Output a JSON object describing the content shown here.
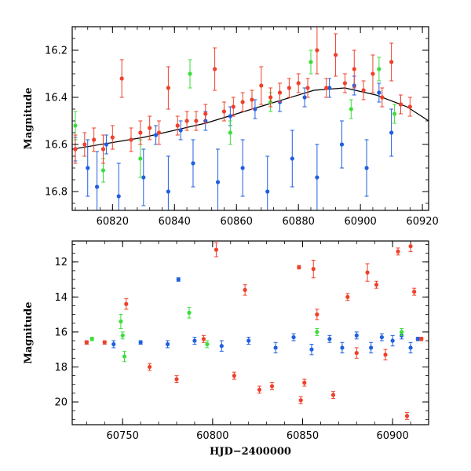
{
  "chart_data": [
    {
      "type": "scatter",
      "title": "",
      "xlabel": "",
      "ylabel": "Magnitude",
      "xlim": [
        60807,
        60922
      ],
      "ylim": [
        16.1,
        16.88
      ],
      "y_inverted": true,
      "xticks": [
        60820,
        60840,
        60860,
        60880,
        60900,
        60920
      ],
      "xtick_labels": [
        "60820",
        "60840",
        "60860",
        "60880",
        "60900",
        "60920"
      ],
      "yticks": [
        16.2,
        16.4,
        16.6,
        16.8
      ],
      "ytick_labels": [
        "16.2",
        "16.4",
        "16.6",
        "16.8"
      ],
      "grid": false,
      "error_bars": true,
      "model_curve": {
        "color": "#000000",
        "x": [
          60807,
          60830,
          60850,
          60870,
          60885,
          60895,
          60905,
          60915,
          60922
        ],
        "y": [
          16.62,
          16.57,
          16.51,
          16.43,
          16.37,
          16.36,
          16.39,
          16.44,
          16.5
        ]
      },
      "series": [
        {
          "color": "#1f5fe0",
          "x": [
            60808,
            60812,
            60815,
            60818,
            60822,
            60826,
            60830,
            60834,
            60838,
            60842,
            60846,
            60850,
            60854,
            60858,
            60862,
            60866,
            60870,
            60874,
            60878,
            60882,
            60886,
            60890,
            60894,
            60898,
            60902,
            60906,
            60910,
            60913
          ],
          "y": [
            16.62,
            16.7,
            16.78,
            16.6,
            16.82,
            16.58,
            16.74,
            16.56,
            16.8,
            16.54,
            16.68,
            16.5,
            16.76,
            16.48,
            16.7,
            16.45,
            16.8,
            16.42,
            16.66,
            16.4,
            16.74,
            16.36,
            16.6,
            16.35,
            16.7,
            16.38,
            16.55,
            16.43
          ],
          "yerr": [
            0.05,
            0.12,
            0.15,
            0.04,
            0.14,
            0.05,
            0.12,
            0.04,
            0.15,
            0.04,
            0.1,
            0.04,
            0.14,
            0.04,
            0.12,
            0.04,
            0.15,
            0.04,
            0.12,
            0.04,
            0.14,
            0.04,
            0.1,
            0.04,
            0.12,
            0.04,
            0.1,
            0.04
          ]
        },
        {
          "color": "#3ddc3d",
          "x": [
            60808,
            60817,
            60829,
            60845,
            60858,
            60871,
            60884,
            60897,
            60906,
            60911
          ],
          "y": [
            16.52,
            16.71,
            16.66,
            16.3,
            16.55,
            16.42,
            16.25,
            16.45,
            16.28,
            16.47
          ],
          "yerr": [
            0.06,
            0.05,
            0.08,
            0.06,
            0.05,
            0.04,
            0.05,
            0.04,
            0.05,
            0.04
          ]
        },
        {
          "color": "#f0402a",
          "x": [
            60808,
            60811,
            60814,
            60817,
            60820,
            60823,
            60826,
            60829,
            60832,
            60835,
            60838,
            60841,
            60844,
            60847,
            60850,
            60853,
            60856,
            60859,
            60862,
            60865,
            60868,
            60871,
            60874,
            60877,
            60880,
            60883,
            60886,
            60889,
            60892,
            60895,
            60898,
            60901,
            60904,
            60907,
            60910,
            60913,
            60916
          ],
          "y": [
            16.62,
            16.6,
            16.58,
            16.62,
            16.57,
            16.32,
            16.58,
            16.55,
            16.53,
            16.55,
            16.36,
            16.52,
            16.5,
            16.5,
            16.47,
            16.28,
            16.46,
            16.44,
            16.42,
            16.41,
            16.35,
            16.4,
            16.38,
            16.36,
            16.34,
            16.36,
            16.2,
            16.36,
            16.22,
            16.34,
            16.28,
            16.37,
            16.3,
            16.4,
            16.25,
            16.43,
            16.44
          ],
          "yerr": [
            0.06,
            0.05,
            0.05,
            0.06,
            0.05,
            0.08,
            0.05,
            0.05,
            0.05,
            0.05,
            0.09,
            0.04,
            0.04,
            0.04,
            0.04,
            0.09,
            0.04,
            0.04,
            0.04,
            0.04,
            0.08,
            0.04,
            0.04,
            0.04,
            0.04,
            0.04,
            0.1,
            0.04,
            0.09,
            0.04,
            0.08,
            0.04,
            0.08,
            0.04,
            0.08,
            0.04,
            0.04
          ]
        }
      ]
    },
    {
      "type": "scatter",
      "title": "",
      "xlabel": "HJD−2400000",
      "ylabel": "Magnitude",
      "xlim": [
        60722,
        60920
      ],
      "ylim": [
        10.8,
        21.3
      ],
      "y_inverted": true,
      "xticks": [
        60750,
        60800,
        60850,
        60900
      ],
      "xtick_labels": [
        "60750",
        "60800",
        "60850",
        "60900"
      ],
      "yticks": [
        12,
        14,
        16,
        18,
        20
      ],
      "ytick_labels": [
        "12",
        "14",
        "16",
        "18",
        "20"
      ],
      "grid": false,
      "error_bars": true,
      "series": [
        {
          "color": "#1f5fe0",
          "x": [
            60730,
            60745,
            60760,
            60775,
            60781,
            60790,
            60805,
            60820,
            60835,
            60845,
            60855,
            60865,
            60872,
            60880,
            60888,
            60894,
            60900,
            60905,
            60910,
            60914
          ],
          "y": [
            16.6,
            16.7,
            16.6,
            16.7,
            13.0,
            16.5,
            16.8,
            16.5,
            16.9,
            16.3,
            17.0,
            16.4,
            16.9,
            16.2,
            16.9,
            16.3,
            16.5,
            16.2,
            16.9,
            16.4
          ],
          "yerr": [
            0.1,
            0.2,
            0.1,
            0.2,
            0.1,
            0.2,
            0.3,
            0.2,
            0.3,
            0.2,
            0.3,
            0.2,
            0.3,
            0.2,
            0.3,
            0.2,
            0.3,
            0.2,
            0.3,
            0.1
          ]
        },
        {
          "color": "#3ddc3d",
          "x": [
            60733,
            60749,
            60750,
            60751,
            60787,
            60797,
            60858,
            60905
          ],
          "y": [
            16.4,
            15.4,
            16.2,
            17.4,
            14.9,
            16.7,
            16.0,
            16.0
          ],
          "yerr": [
            0.1,
            0.4,
            0.2,
            0.3,
            0.3,
            0.2,
            0.2,
            0.2
          ]
        },
        {
          "color": "#f0402a",
          "x": [
            60730,
            60740,
            60752,
            60765,
            60780,
            60795,
            60802,
            60812,
            60818,
            60826,
            60833,
            60848,
            60849,
            60851,
            60856,
            60858,
            60867,
            60875,
            60880,
            60886,
            60891,
            60896,
            60903,
            60908,
            60910,
            60912,
            60916
          ],
          "y": [
            16.6,
            16.6,
            14.4,
            18.0,
            18.7,
            16.4,
            11.3,
            18.5,
            13.6,
            19.3,
            19.1,
            12.3,
            19.9,
            18.9,
            12.4,
            15.0,
            19.6,
            14.0,
            17.2,
            12.6,
            13.3,
            17.3,
            11.4,
            20.8,
            11.1,
            13.7,
            16.4
          ],
          "yerr": [
            0.1,
            0.1,
            0.3,
            0.2,
            0.2,
            0.2,
            0.4,
            0.2,
            0.3,
            0.2,
            0.2,
            0.1,
            0.2,
            0.2,
            0.5,
            0.3,
            0.2,
            0.2,
            0.3,
            0.5,
            0.2,
            0.3,
            0.2,
            0.2,
            0.3,
            0.2,
            0.1
          ]
        }
      ]
    }
  ]
}
